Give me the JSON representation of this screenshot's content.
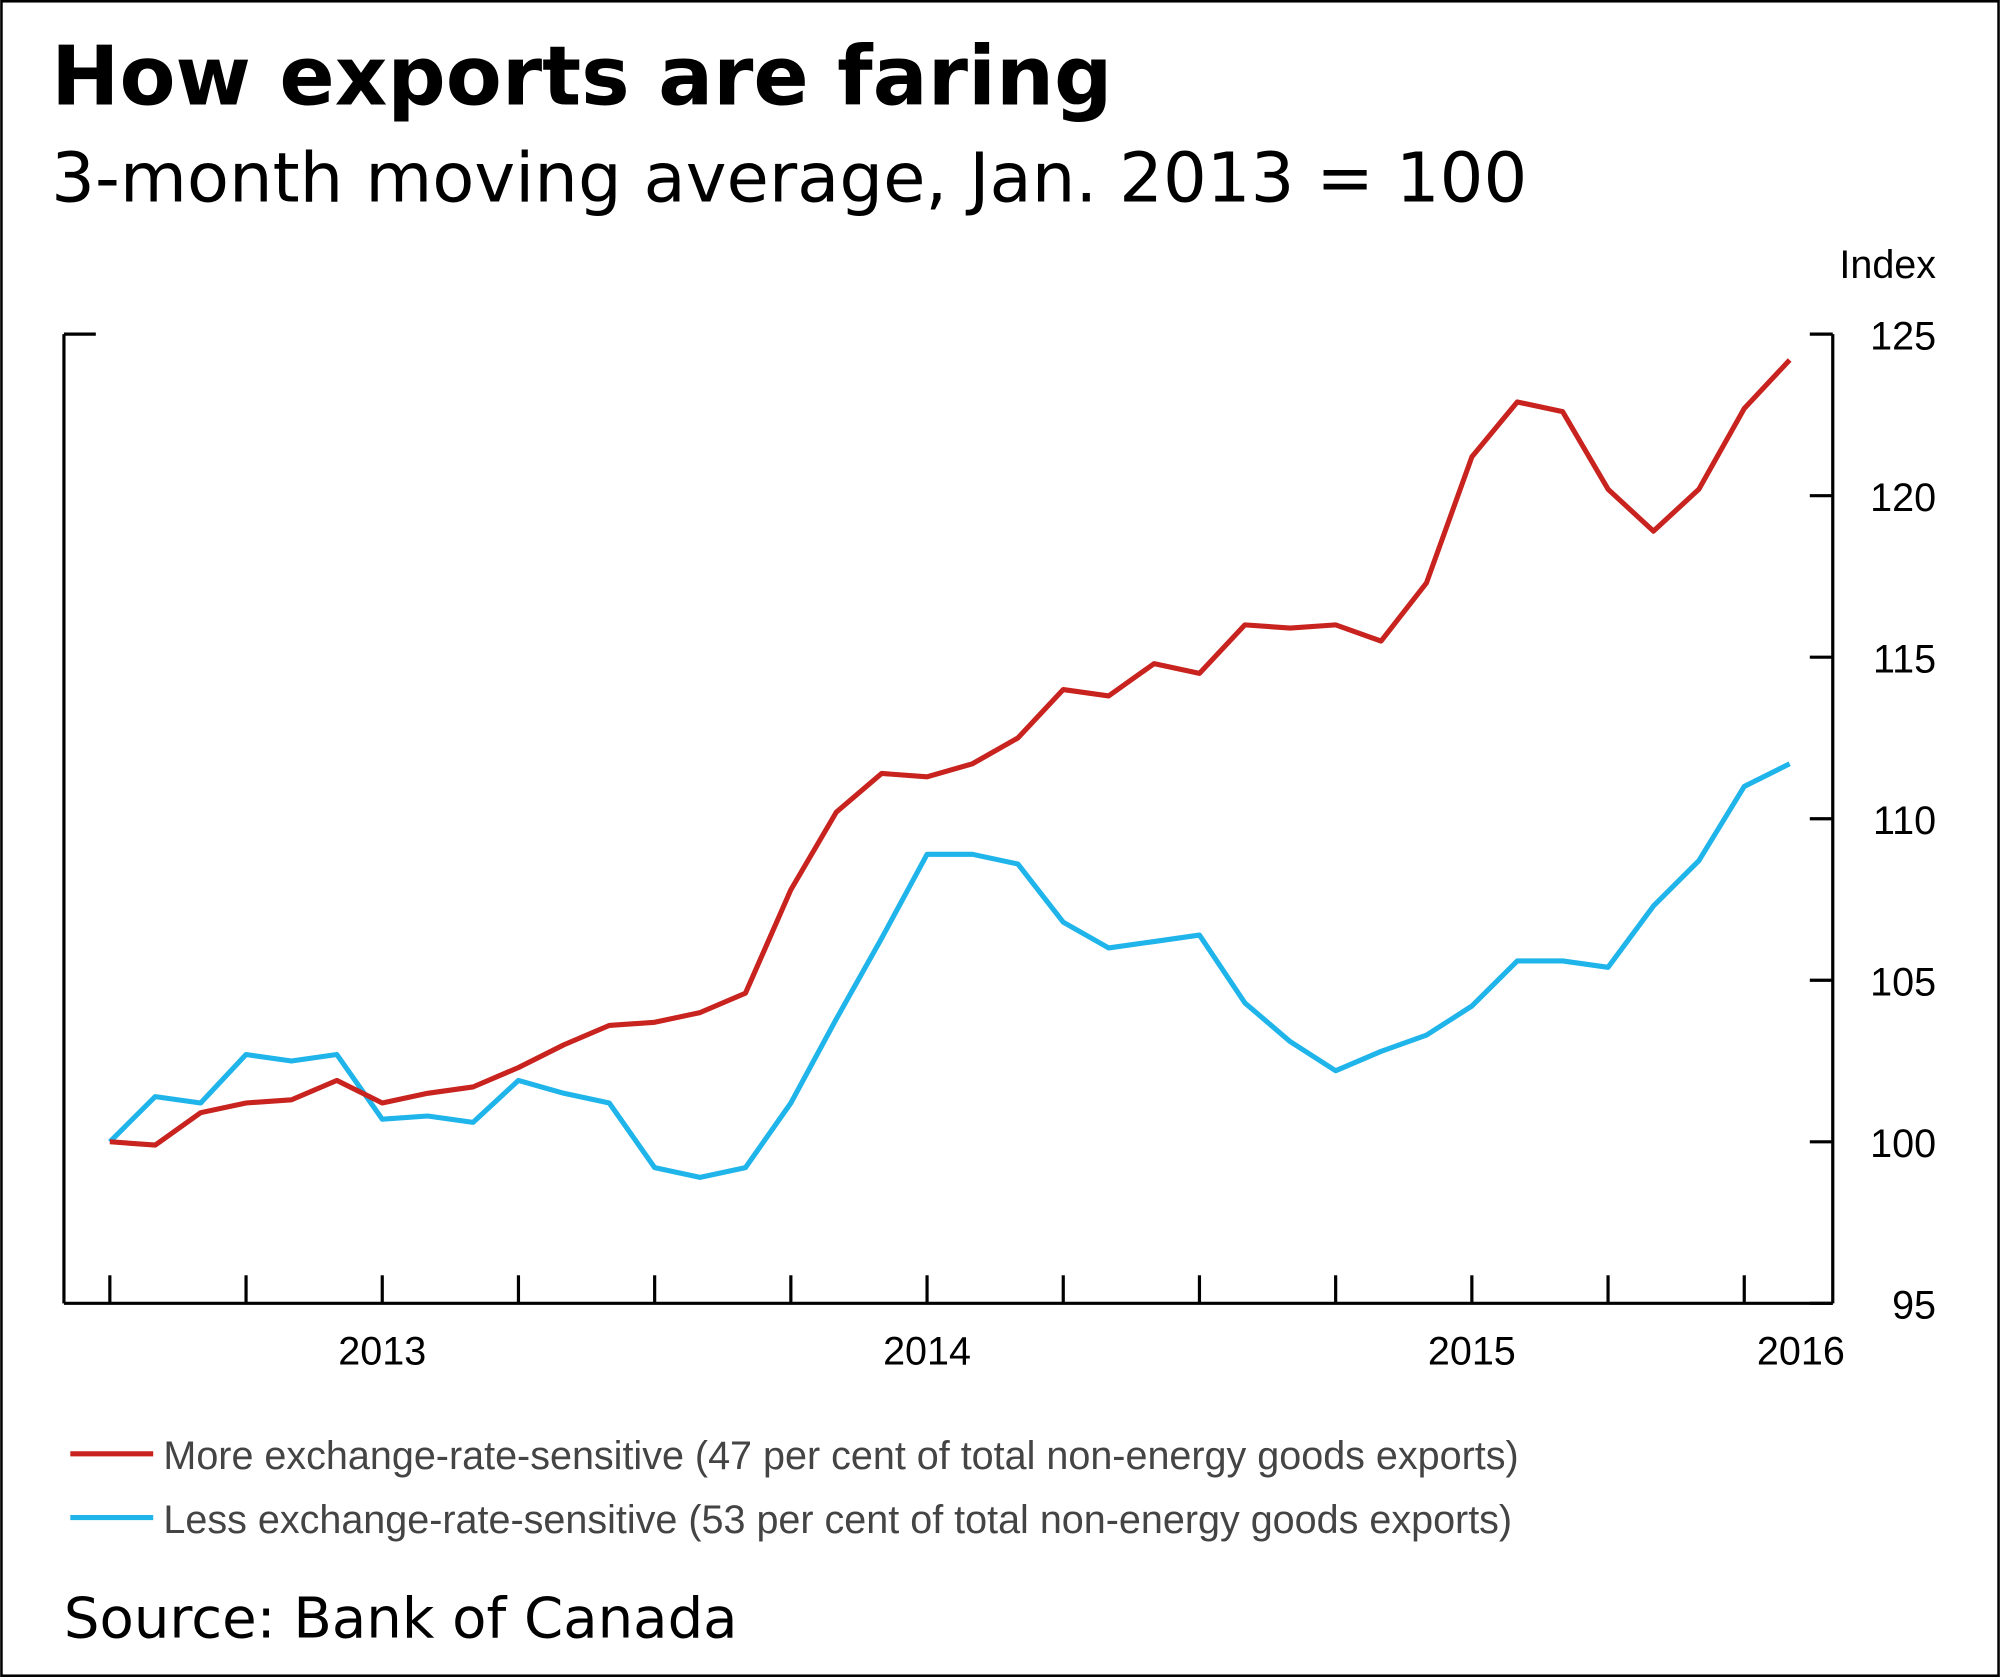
{
  "chart_data": {
    "type": "line",
    "title": "How exports are faring",
    "subtitle": "3-month moving average, Jan. 2013 = 100",
    "ylabel": "Index",
    "ylim": [
      95,
      125
    ],
    "yticks": [
      "95",
      "100",
      "105",
      "110",
      "115",
      "120",
      "125"
    ],
    "ytick_values": [
      95,
      100,
      105,
      110,
      115,
      120,
      125
    ],
    "xlabels": [
      "2013",
      "2014",
      "2015",
      "2016"
    ],
    "x_start": "Jan 2013",
    "x_end": "Feb 2016",
    "x_frequency": "monthly",
    "series": [
      {
        "name": "More exchange-rate-sensitive (47 per cent of total non-energy goods exports)",
        "color": "#c8231e",
        "values": [
          100,
          99.9,
          100.9,
          101.2,
          101.3,
          101.9,
          101.2,
          101.5,
          101.7,
          102.3,
          103.0,
          103.6,
          103.7,
          104.0,
          104.6,
          107.8,
          110.2,
          111.4,
          111.3,
          111.7,
          112.5,
          114.0,
          113.8,
          114.8,
          114.5,
          116.0,
          115.9,
          116.0,
          115.5,
          117.3,
          121.2,
          122.9,
          122.6,
          120.2,
          118.9,
          120.2,
          122.7,
          124.2
        ]
      },
      {
        "name": "Less exchange-rate-sensitive (53 per cent of total non-energy goods exports)",
        "color": "#1fb4ea",
        "values": [
          100,
          101.4,
          101.2,
          102.7,
          102.5,
          102.7,
          100.7,
          100.8,
          100.6,
          101.9,
          101.5,
          101.2,
          99.2,
          98.9,
          99.2,
          101.2,
          103.8,
          106.3,
          108.9,
          108.9,
          108.6,
          106.8,
          106.0,
          106.2,
          106.4,
          104.3,
          103.1,
          102.2,
          102.8,
          103.3,
          104.2,
          105.6,
          105.6,
          105.4,
          107.3,
          108.7,
          111.0,
          111.7
        ]
      }
    ],
    "legend_position": "bottom",
    "grid": false,
    "source": "Source: Bank of Canada"
  }
}
